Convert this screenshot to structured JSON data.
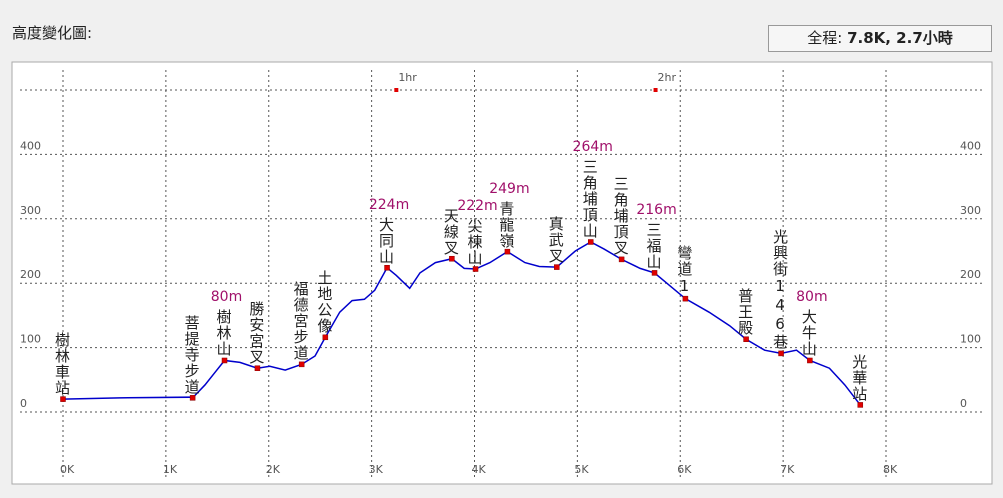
{
  "header": {
    "title": "高度變化圖:",
    "summary_label": "全程:",
    "summary_value": "7.8K, 2.7小時"
  },
  "chart_data": {
    "type": "line",
    "x": [
      0,
      0.55,
      1.23,
      1.26,
      1.38,
      1.48,
      1.57,
      1.72,
      1.89,
      2.01,
      2.16,
      2.32,
      2.45,
      2.55,
      2.69,
      2.81,
      2.93,
      3.03,
      3.15,
      3.24,
      3.37,
      3.47,
      3.62,
      3.78,
      3.9,
      4.01,
      4.15,
      4.32,
      4.49,
      4.63,
      4.8,
      4.98,
      5.13,
      5.26,
      5.43,
      5.61,
      5.75,
      5.9,
      6.05,
      6.28,
      6.48,
      6.64,
      6.82,
      6.98,
      7.13,
      7.26,
      7.45,
      7.6,
      7.75
    ],
    "series": [
      {
        "color": "#0000cc",
        "values": [
          20,
          22,
          23,
          22,
          42,
          62,
          80,
          77,
          68,
          71,
          65,
          74,
          87,
          116,
          155,
          173,
          175,
          189,
          224,
          212,
          192,
          216,
          232,
          238,
          223,
          222,
          232,
          249,
          232,
          226,
          225,
          250,
          264,
          253,
          237,
          223,
          216,
          196,
          176,
          155,
          134,
          113,
          96,
          91,
          96,
          80,
          68,
          42,
          11
        ]
      }
    ],
    "waypoints": [
      {
        "name": "樹林車站",
        "x": 0,
        "elevation": 20
      },
      {
        "name": "菩提寺步道",
        "x": 1.26,
        "elevation": 22
      },
      {
        "name": "樹林山",
        "x": 1.57,
        "elevation": 80,
        "value_label": "80m"
      },
      {
        "name": "勝安宮叉",
        "x": 1.89,
        "elevation": 68
      },
      {
        "name": "福德宮步道",
        "x": 2.32,
        "elevation": 74
      },
      {
        "name": "土地公像",
        "x": 2.55,
        "elevation": 116
      },
      {
        "name": "大同山",
        "x": 3.15,
        "elevation": 224,
        "value_label": "224m"
      },
      {
        "name": "天線叉",
        "x": 3.78,
        "elevation": 238
      },
      {
        "name": "尖棟山",
        "x": 4.01,
        "elevation": 222,
        "value_label": "222m"
      },
      {
        "name": "青龍嶺",
        "x": 4.32,
        "elevation": 249,
        "value_label": "249m"
      },
      {
        "name": "真武叉",
        "x": 4.8,
        "elevation": 225
      },
      {
        "name": "三角埔頂山",
        "x": 5.13,
        "elevation": 264,
        "value_label": "264m"
      },
      {
        "name": "三角埔頂叉",
        "x": 5.43,
        "elevation": 237
      },
      {
        "name": "三福山",
        "x": 5.75,
        "elevation": 216,
        "value_label": "216m"
      },
      {
        "name": "彎道1",
        "x": 6.05,
        "elevation": 176
      },
      {
        "name": "普王殿",
        "x": 6.64,
        "elevation": 113
      },
      {
        "name": "光興街146巷",
        "x": 6.98,
        "elevation": 91
      },
      {
        "name": "大牛山",
        "x": 7.26,
        "elevation": 80,
        "value_label": "80m"
      },
      {
        "name": "光華站",
        "x": 7.75,
        "elevation": 11
      }
    ],
    "time_markers": [
      {
        "label": "1hr",
        "x": 3.24
      },
      {
        "label": "2hr",
        "x": 5.76
      }
    ],
    "xlim": [
      0,
      8
    ],
    "xticks": [
      {
        "value": 0,
        "label": "0K"
      },
      {
        "value": 1,
        "label": "1K"
      },
      {
        "value": 2,
        "label": "2K"
      },
      {
        "value": 3,
        "label": "3K"
      },
      {
        "value": 4,
        "label": "4K"
      },
      {
        "value": 5,
        "label": "5K"
      },
      {
        "value": 6,
        "label": "6K"
      },
      {
        "value": 7,
        "label": "7K"
      },
      {
        "value": 8,
        "label": "8K"
      }
    ],
    "ylim": [
      0,
      500
    ],
    "yticks": [
      0,
      100,
      200,
      300,
      400
    ],
    "grid": true,
    "marker_color": "#e00000",
    "value_label_color": "#a0106a"
  }
}
